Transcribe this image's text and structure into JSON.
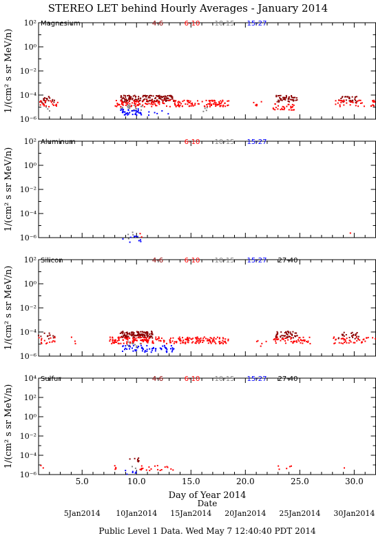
{
  "title": "STEREO LET behind Hourly Averages - January 2014",
  "xlabel": "Day of Year 2014",
  "footer": {
    "date_label": "Date",
    "dates": [
      "5Jan2014",
      "10Jan2014",
      "15Jan2014",
      "20Jan2014",
      "25Jan2014",
      "30Jan2014"
    ],
    "status": "Public Level 1 Data. Wed May  7 12:40:40 PDT 2014"
  },
  "colors": {
    "4-6": "#8B0000",
    "6-10": "#FF0000",
    "10-15": "#808080",
    "15-27": "#0000FF",
    "27-40": "#000000"
  },
  "chart_data": [
    {
      "type": "scatter",
      "title": "Magnesium",
      "ylabel": "1/(cm² s sr MeV/n)",
      "xlim": [
        1,
        32
      ],
      "ylim_exp": [
        -6,
        2
      ],
      "xticks": [
        "5.0",
        "10.0",
        "15.0",
        "20.0",
        "25.0",
        "30.0"
      ],
      "yticks": [
        "10²",
        "10⁰",
        "10⁻²",
        "10⁻⁴",
        "10⁻⁶"
      ],
      "legend": [
        "4-6",
        "6-10",
        "10-15",
        "15-27"
      ],
      "series": [
        {
          "name": "4-6",
          "clusters": [
            [
              1.0,
              2.5,
              4e-05,
              20
            ],
            [
              8.5,
              13.5,
              5e-05,
              150
            ],
            [
              22.8,
              24.8,
              5e-05,
              50
            ],
            [
              28.5,
              30.5,
              4e-05,
              30
            ]
          ]
        },
        {
          "name": "6-10",
          "clusters": [
            [
              1.0,
              3.0,
              2e-05,
              20
            ],
            [
              8.0,
              18.5,
              2e-05,
              180
            ],
            [
              20.5,
              21.5,
              2e-05,
              6
            ],
            [
              22.5,
              24.5,
              1e-05,
              30
            ],
            [
              28.0,
              32.0,
              2e-05,
              40
            ]
          ]
        },
        {
          "name": "10-15",
          "clusters": [
            [
              1.5,
              2.5,
              8e-06,
              3
            ],
            [
              8.5,
              10.5,
              8e-06,
              20
            ],
            [
              16.0,
              16.5,
              8e-06,
              4
            ]
          ]
        },
        {
          "name": "15-27",
          "clusters": [
            [
              8.5,
              10.5,
              4e-06,
              40
            ],
            [
              11.0,
              13.0,
              4e-06,
              6
            ]
          ]
        }
      ]
    },
    {
      "type": "scatter",
      "title": "Aluminum",
      "ylabel": "1/(cm² s sr MeV/n)",
      "xlim": [
        1,
        32
      ],
      "ylim_exp": [
        -6,
        2
      ],
      "xticks": [
        "5.0",
        "10.0",
        "15.0",
        "20.0",
        "25.0",
        "30.0"
      ],
      "yticks": [
        "10²",
        "10⁰",
        "10⁻²",
        "10⁻⁴",
        "10⁻⁶"
      ],
      "legend": [
        "6-10",
        "10-15",
        "15-27"
      ],
      "series": [
        {
          "name": "6-10",
          "clusters": [
            [
              10.0,
              10.5,
              1.5e-06,
              2
            ],
            [
              29.5,
              29.8,
              1.5e-06,
              1
            ]
          ]
        },
        {
          "name": "10-15",
          "clusters": [
            [
              9.0,
              10.2,
              1.5e-06,
              4
            ]
          ]
        },
        {
          "name": "15-27",
          "clusters": [
            [
              8.5,
              10.5,
              7e-07,
              10
            ]
          ]
        }
      ]
    },
    {
      "type": "scatter",
      "title": "Silicon",
      "ylabel": "1/(cm² s sr MeV/n)",
      "xlim": [
        1,
        32
      ],
      "ylim_exp": [
        -6,
        2
      ],
      "xticks": [
        "5.0",
        "10.0",
        "15.0",
        "20.0",
        "25.0",
        "30.0"
      ],
      "yticks": [
        "10²",
        "10⁰",
        "10⁻²",
        "10⁻⁴",
        "10⁻⁶"
      ],
      "legend": [
        "4-6",
        "6-10",
        "10-15",
        "15-27",
        "27-40"
      ],
      "series": [
        {
          "name": "4-6",
          "clusters": [
            [
              1.0,
              2.5,
              5e-05,
              12
            ],
            [
              8.5,
              11.5,
              6e-05,
              120
            ],
            [
              22.8,
              24.8,
              6e-05,
              50
            ],
            [
              28.5,
              30.5,
              5e-05,
              25
            ]
          ]
        },
        {
          "name": "6-10",
          "clusters": [
            [
              1.0,
              2.5,
              2e-05,
              15
            ],
            [
              4.0,
              4.5,
              2e-05,
              3
            ],
            [
              7.5,
              18.5,
              2e-05,
              220
            ],
            [
              21.0,
              22.0,
              1e-05,
              5
            ],
            [
              22.5,
              26.0,
              2e-05,
              50
            ],
            [
              28.0,
              32.0,
              2e-05,
              40
            ]
          ]
        },
        {
          "name": "10-15",
          "clusters": [
            [
              9.0,
              10.5,
              8e-06,
              10
            ]
          ]
        },
        {
          "name": "15-27",
          "clusters": [
            [
              8.5,
              13.5,
              4e-06,
              60
            ]
          ]
        }
      ]
    },
    {
      "type": "scatter",
      "title": "Sulfur",
      "ylabel": "1/(cm² s sr MeV/n)",
      "xlim": [
        1,
        32
      ],
      "ylim_exp": [
        -6,
        4
      ],
      "xticks": [
        "5.0",
        "10.0",
        "15.0",
        "20.0",
        "25.0",
        "30.0"
      ],
      "yticks": [
        "10⁴",
        "10²",
        "10⁰",
        "10⁻²",
        "10⁻⁴",
        "10⁻⁶"
      ],
      "legend": [
        "4-6",
        "6-10",
        "10-15",
        "15-27",
        "27-40"
      ],
      "series": [
        {
          "name": "4-6",
          "clusters": [
            [
              9.0,
              10.5,
              3e-05,
              8
            ]
          ]
        },
        {
          "name": "6-10",
          "clusters": [
            [
              1.0,
              1.5,
              5e-06,
              2
            ],
            [
              8.0,
              13.5,
              5e-06,
              25
            ],
            [
              22.8,
              24.5,
              5e-06,
              5
            ],
            [
              28.8,
              29.2,
              5e-06,
              1
            ]
          ]
        },
        {
          "name": "10-15",
          "clusters": [
            [
              9.5,
              10.0,
              5e-06,
              2
            ]
          ]
        },
        {
          "name": "15-27",
          "clusters": [
            [
              8.5,
              10.0,
              1.5e-06,
              6
            ]
          ]
        }
      ]
    }
  ]
}
